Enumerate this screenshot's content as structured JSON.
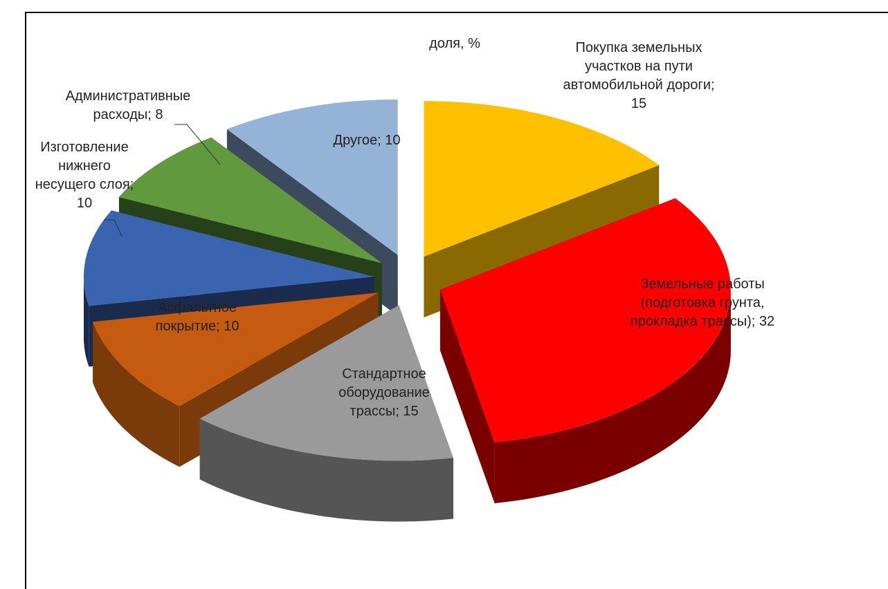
{
  "chart_data": {
    "type": "pie3d",
    "title": "доля, %",
    "values": [
      15,
      32,
      15,
      10,
      10,
      8,
      10
    ],
    "value_labels": [
      "Покупка земельных участков на пути автомобильной дороги; 15",
      "Земельные работы (подготовка грунта, прокладка трассы); 32",
      "Стандартное оборудование трассы; 15",
      "Асфальтное покрытие; 10",
      "Изготовление нижнего несущего слоя; 10",
      "Административные расходы; 8",
      "Другое; 10"
    ],
    "colors": [
      "#FFC000",
      "#FF0000",
      "#9A9A9A",
      "#C55A11",
      "#3A64B0",
      "#62993E",
      "#95B3D7"
    ],
    "side_colors": [
      "#8A6900",
      "#7A0000",
      "#555555",
      "#7A3A0A",
      "#1A2B4E",
      "#26401A",
      "#3C4A5E"
    ]
  }
}
